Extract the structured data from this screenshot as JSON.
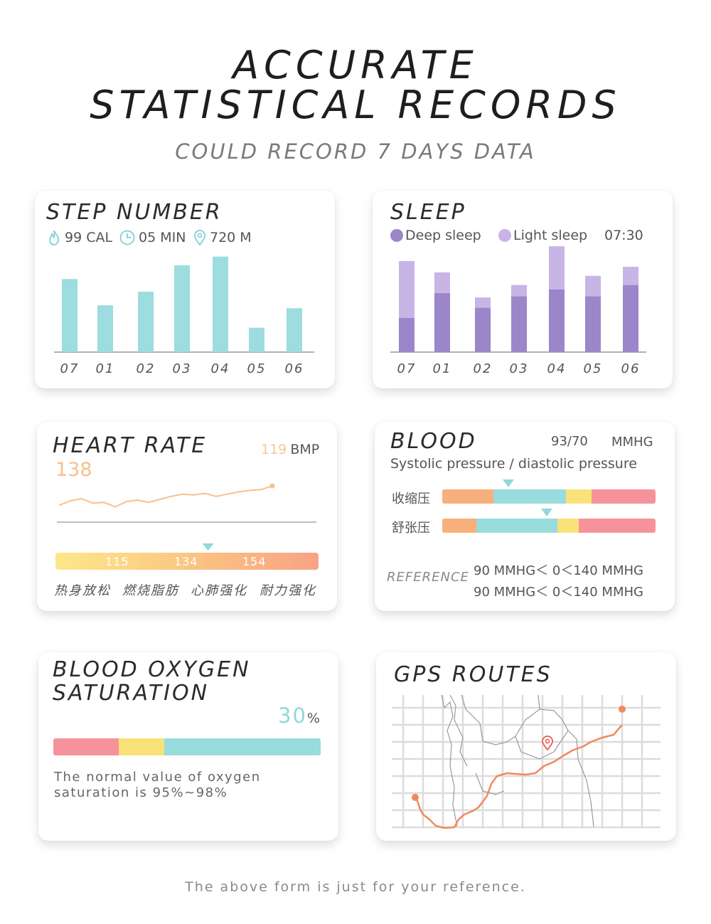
{
  "header": {
    "title_line1": "ACCURATE",
    "title_line2": "STATISTICAL RECORDS",
    "subtitle": "COULD RECORD 7 DAYS DATA"
  },
  "step_card": {
    "title": "STEP NUMBER",
    "stats": [
      {
        "icon": "flame-icon",
        "value": "99 CAL"
      },
      {
        "icon": "clock-icon",
        "value": "05 MIN"
      },
      {
        "icon": "location-pin-icon",
        "value": "720 M"
      }
    ],
    "bar_color": "#9ddcdf"
  },
  "sleep_card": {
    "title": "SLEEP",
    "legend_deep": "Deep sleep",
    "legend_light": "Light sleep",
    "time": "07:30",
    "deep_color": "#9b86c9",
    "light_color": "#c8b5e6"
  },
  "heart_card": {
    "title": "HEART RATE",
    "current_value": "119",
    "current_unit": "BMP",
    "peak": "138",
    "thresholds": [
      "115",
      "134",
      "154"
    ],
    "zones": [
      "热身放松",
      "燃烧脂肪",
      "心肺强化",
      "耐力强化"
    ],
    "marker_fraction": 0.58,
    "line_color": "#f8c08e"
  },
  "blood_card": {
    "title": "BLOOD",
    "reading": "93/70",
    "unit": "MMHG",
    "subtitle": "Systolic pressure / diastolic pressure",
    "rows": [
      {
        "label": "收缩压",
        "marker_fraction": 0.31
      },
      {
        "label": "舒张压",
        "marker_fraction": 0.49
      }
    ],
    "reference_label": "REFERENCE",
    "reference_lines": [
      "90 MMHG＜ 0＜140 MMHG",
      "90 MMHG＜ 0＜140 MMHG"
    ]
  },
  "oxygen_card": {
    "title_line1": "BLOOD OXYGEN",
    "title_line2": "SATURATION",
    "value": "30",
    "unit": "%",
    "note_line1": "The normal value of oxygen",
    "note_line2": "saturation is 95%~98%"
  },
  "gps_card": {
    "title": "GPS ROUTES",
    "route_color": "#f08a5d"
  },
  "footer": "The above form is just for your reference.",
  "chart_data": [
    {
      "type": "bar",
      "title": "STEP NUMBER",
      "categories": [
        "07",
        "01",
        "02",
        "03",
        "04",
        "05",
        "06"
      ],
      "values": [
        75,
        48,
        62,
        89,
        98,
        25,
        45
      ]
    },
    {
      "type": "bar",
      "title": "SLEEP",
      "stacked": true,
      "categories": [
        "07",
        "01",
        "02",
        "03",
        "04",
        "05",
        "06"
      ],
      "series": [
        {
          "name": "Deep sleep",
          "values": [
            30,
            52,
            39,
            49,
            55,
            49,
            59
          ]
        },
        {
          "name": "Light sleep",
          "values": [
            50,
            18,
            9,
            10,
            38,
            18,
            16
          ]
        }
      ]
    },
    {
      "type": "line",
      "title": "HEART RATE",
      "x": [
        0,
        1,
        2,
        3,
        4,
        5,
        6,
        7,
        8,
        9,
        10,
        11,
        12,
        13,
        14,
        15,
        16,
        17,
        18,
        19
      ],
      "y": [
        112,
        118,
        121,
        115,
        116,
        110,
        117,
        119,
        116,
        120,
        124,
        127,
        126,
        128,
        124,
        127,
        130,
        132,
        133,
        138
      ]
    }
  ]
}
